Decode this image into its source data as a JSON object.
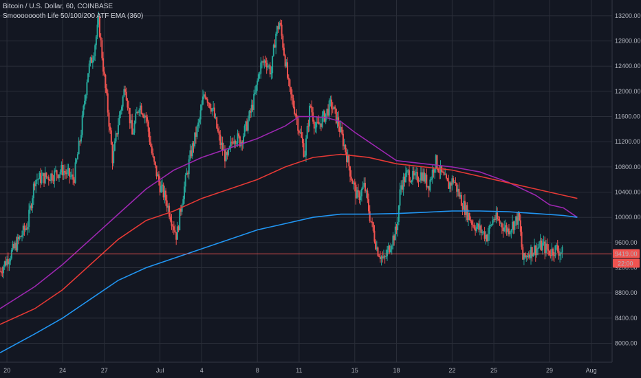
{
  "header": {
    "symbol_line": "Bitcoin / U.S. Dollar, 60, COINBASE",
    "indicator_line": "Smoooooooth Life 50/100/200 ATF EMA (360)"
  },
  "colors": {
    "background": "#131722",
    "grid": "#2a2e39",
    "candle_up": "#26a69a",
    "candle_down": "#ef5350",
    "ema_fast": "#9c27b0",
    "ema_mid": "#e53935",
    "ema_slow": "#2196f3",
    "price_line": "#ef5350",
    "price_label_bg": "#ef5350"
  },
  "price_label": {
    "price": "9419.00",
    "countdown": "22:00"
  },
  "chart_data": {
    "type": "line",
    "y_ticks": [
      "13200.00",
      "12800.00",
      "12400.00",
      "12000.00",
      "11600.00",
      "11200.00",
      "10800.00",
      "10400.00",
      "10000.00",
      "9600.00",
      "9200.00",
      "8800.00",
      "8400.00",
      "8000.00"
    ],
    "x_ticks": [
      "20",
      "24",
      "27",
      "Jul",
      "4",
      "8",
      "11",
      "15",
      "18",
      "22",
      "25",
      "29",
      "Aug"
    ],
    "ylim": [
      7700,
      13450
    ],
    "x_days": [
      20,
      24,
      27,
      31,
      34,
      38,
      41,
      45,
      48,
      52,
      55,
      59,
      62
    ],
    "xlim": [
      19.5,
      63.5
    ],
    "last_price": 9419,
    "price_close": [
      [
        19.5,
        9150
      ],
      [
        20.5,
        9500
      ],
      [
        21.5,
        9900
      ],
      [
        22,
        10600
      ],
      [
        23,
        10650
      ],
      [
        24,
        10750
      ],
      [
        24.8,
        10600
      ],
      [
        25.3,
        11300
      ],
      [
        25.8,
        12300
      ],
      [
        26.2,
        12600
      ],
      [
        26.6,
        13100
      ],
      [
        27,
        12200
      ],
      [
        27.3,
        11600
      ],
      [
        27.6,
        10900
      ],
      [
        28,
        11500
      ],
      [
        28.5,
        12100
      ],
      [
        29,
        11300
      ],
      [
        29.5,
        11800
      ],
      [
        30,
        11600
      ],
      [
        30.5,
        10900
      ],
      [
        31,
        10500
      ],
      [
        31.4,
        10300
      ],
      [
        31.8,
        10000
      ],
      [
        32.2,
        9700
      ],
      [
        32.6,
        10300
      ],
      [
        33.2,
        11000
      ],
      [
        33.8,
        11500
      ],
      [
        34.2,
        12000
      ],
      [
        34.8,
        11700
      ],
      [
        35.3,
        11200
      ],
      [
        35.8,
        10900
      ],
      [
        36.3,
        11300
      ],
      [
        36.8,
        11200
      ],
      [
        37.3,
        11500
      ],
      [
        37.8,
        11900
      ],
      [
        38.2,
        12400
      ],
      [
        38.6,
        12500
      ],
      [
        39,
        12300
      ],
      [
        39.3,
        12900
      ],
      [
        39.6,
        13100
      ],
      [
        40,
        12500
      ],
      [
        40.3,
        12000
      ],
      [
        40.7,
        11700
      ],
      [
        41,
        11400
      ],
      [
        41.4,
        11000
      ],
      [
        41.8,
        11800
      ],
      [
        42.2,
        11400
      ],
      [
        42.8,
        11600
      ],
      [
        43.3,
        11800
      ],
      [
        43.8,
        11500
      ],
      [
        44.3,
        11100
      ],
      [
        44.8,
        10600
      ],
      [
        45.2,
        10300
      ],
      [
        45.7,
        10500
      ],
      [
        46.1,
        10000
      ],
      [
        46.6,
        9500
      ],
      [
        47.1,
        9300
      ],
      [
        47.6,
        9600
      ],
      [
        48,
        9800
      ],
      [
        48.3,
        10500
      ],
      [
        48.8,
        10700
      ],
      [
        49.3,
        10600
      ],
      [
        49.8,
        10700
      ],
      [
        50.3,
        10500
      ],
      [
        50.8,
        10900
      ],
      [
        51.2,
        10700
      ],
      [
        51.7,
        10500
      ],
      [
        52.1,
        10600
      ],
      [
        52.6,
        10300
      ],
      [
        53,
        10100
      ],
      [
        53.5,
        9900
      ],
      [
        54,
        9800
      ],
      [
        54.5,
        9700
      ],
      [
        55,
        10000
      ],
      [
        55.5,
        9900
      ],
      [
        56,
        9800
      ],
      [
        56.4,
        9900
      ],
      [
        56.8,
        10000
      ],
      [
        57.1,
        9300
      ],
      [
        57.5,
        9450
      ],
      [
        58,
        9500
      ],
      [
        58.5,
        9550
      ],
      [
        59,
        9450
      ],
      [
        59.5,
        9500
      ],
      [
        60,
        9419
      ]
    ],
    "series": [
      {
        "color_key": "ema_fast",
        "points": [
          [
            19.5,
            8550
          ],
          [
            22,
            8900
          ],
          [
            24,
            9250
          ],
          [
            26,
            9650
          ],
          [
            28,
            10050
          ],
          [
            30,
            10450
          ],
          [
            32,
            10750
          ],
          [
            34,
            10950
          ],
          [
            36,
            11100
          ],
          [
            38,
            11250
          ],
          [
            40,
            11450
          ],
          [
            41,
            11600
          ],
          [
            42,
            11600
          ],
          [
            43,
            11580
          ],
          [
            44,
            11520
          ],
          [
            45,
            11350
          ],
          [
            46,
            11200
          ],
          [
            47,
            11050
          ],
          [
            48,
            10900
          ],
          [
            50,
            10850
          ],
          [
            52,
            10800
          ],
          [
            54,
            10720
          ],
          [
            56,
            10560
          ],
          [
            58,
            10350
          ],
          [
            59,
            10200
          ],
          [
            60,
            10150
          ],
          [
            61,
            10000
          ]
        ]
      },
      {
        "color_key": "ema_mid",
        "points": [
          [
            19.5,
            8300
          ],
          [
            22,
            8550
          ],
          [
            24,
            8850
          ],
          [
            26,
            9250
          ],
          [
            28,
            9650
          ],
          [
            30,
            9950
          ],
          [
            32,
            10100
          ],
          [
            34,
            10300
          ],
          [
            36,
            10450
          ],
          [
            38,
            10600
          ],
          [
            40,
            10800
          ],
          [
            42,
            10950
          ],
          [
            44,
            11000
          ],
          [
            46,
            10950
          ],
          [
            48,
            10850
          ],
          [
            50,
            10800
          ],
          [
            52,
            10750
          ],
          [
            54,
            10650
          ],
          [
            56,
            10550
          ],
          [
            58,
            10450
          ],
          [
            60,
            10350
          ],
          [
            61,
            10300
          ]
        ]
      },
      {
        "color_key": "ema_slow",
        "points": [
          [
            19.5,
            7850
          ],
          [
            22,
            8150
          ],
          [
            24,
            8400
          ],
          [
            26,
            8700
          ],
          [
            28,
            9000
          ],
          [
            30,
            9200
          ],
          [
            32,
            9350
          ],
          [
            34,
            9500
          ],
          [
            36,
            9650
          ],
          [
            38,
            9800
          ],
          [
            40,
            9900
          ],
          [
            42,
            10000
          ],
          [
            44,
            10050
          ],
          [
            46,
            10050
          ],
          [
            48,
            10060
          ],
          [
            50,
            10080
          ],
          [
            52,
            10100
          ],
          [
            54,
            10100
          ],
          [
            56,
            10090
          ],
          [
            58,
            10060
          ],
          [
            60,
            10030
          ],
          [
            61,
            10000
          ]
        ]
      }
    ]
  }
}
